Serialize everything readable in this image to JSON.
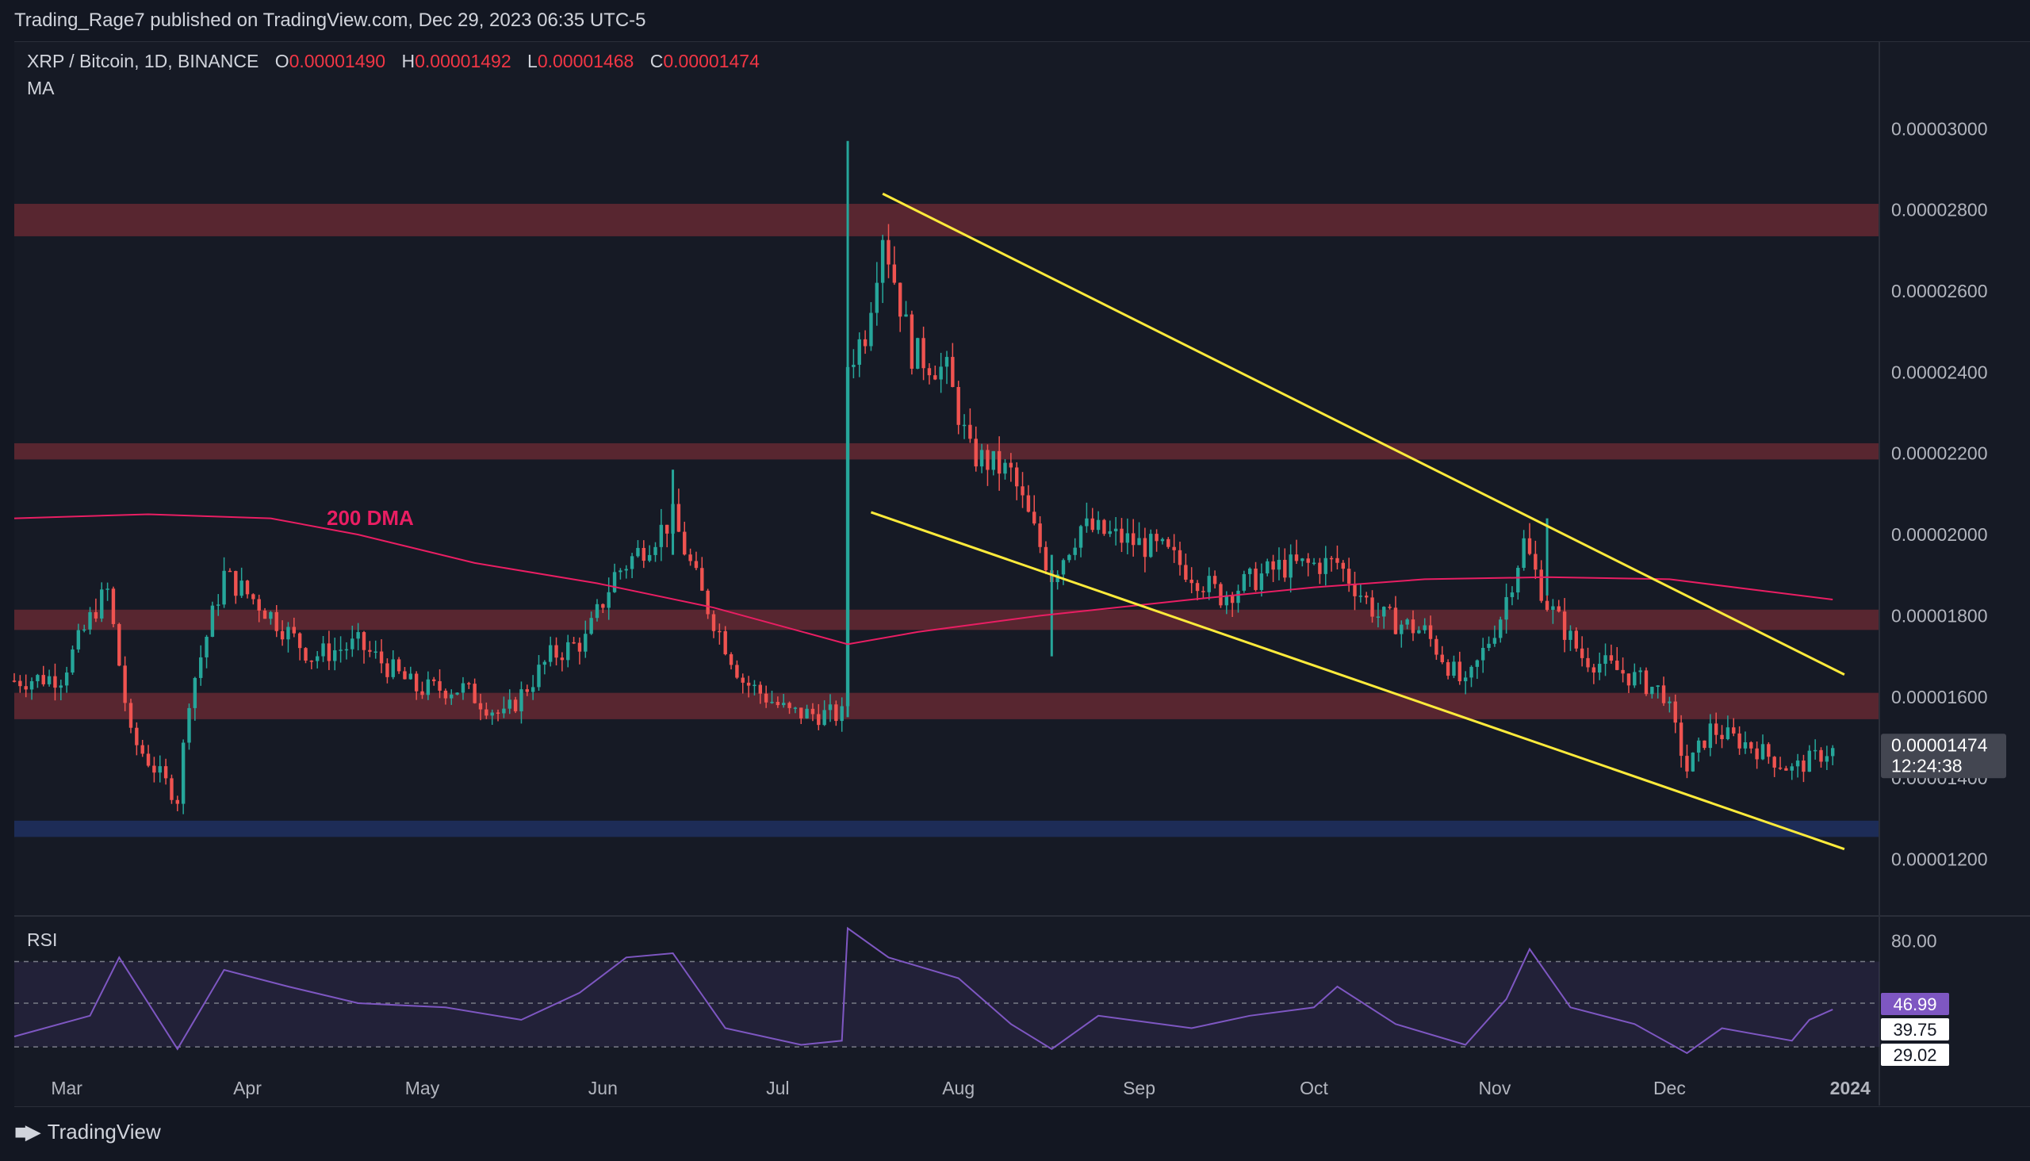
{
  "publisher_line": "Trading_Rage7 published on TradingView.com, Dec 29, 2023 06:35 UTC-5",
  "legend": {
    "symbol": "XRP / Bitcoin, 1D, BINANCE",
    "o_label": "O",
    "o_value": "0.00001490",
    "h_label": "H",
    "h_value": "0.00001492",
    "l_label": "L",
    "l_value": "0.00001468",
    "c_label": "C",
    "c_value": "0.00001474"
  },
  "ma_label": "MA",
  "rsi_label": "RSI",
  "footer_brand": "TradingView",
  "colors": {
    "up": "#26a69a",
    "down": "#ef5350",
    "ma": "#e91e63",
    "trendline": "#ffeb3b",
    "zone_red": "#5c2730",
    "zone_blue": "#1e2d5a",
    "rsi": "#7e57c2",
    "price_tag": "#434651"
  },
  "chart_data": [
    {
      "type": "candlestick",
      "annotation_text": "200 DMA",
      "x_ticks": [
        "Mar",
        "Apr",
        "May",
        "Jun",
        "Jul",
        "Aug",
        "Sep",
        "Oct",
        "Nov",
        "Dec",
        "2024"
      ],
      "y_ticks": [
        "0.00003000",
        "0.00002800",
        "0.00002600",
        "0.00002400",
        "0.00002200",
        "0.00002000",
        "0.00001800",
        "0.00001600",
        "0.00001400",
        "0.00001200"
      ],
      "ylim": [
        1.07e-05,
        3.2e-05
      ],
      "current_price": "0.00001474",
      "countdown": "12:24:38",
      "zones": [
        {
          "color": "red",
          "from": 2.735e-05,
          "to": 2.815e-05
        },
        {
          "color": "red",
          "from": 2.185e-05,
          "to": 2.225e-05
        },
        {
          "color": "red",
          "from": 1.765e-05,
          "to": 1.815e-05
        },
        {
          "color": "red",
          "from": 1.545e-05,
          "to": 1.61e-05
        },
        {
          "color": "blue",
          "from": 1.255e-05,
          "to": 1.295e-05
        }
      ],
      "trendlines": [
        {
          "from": [
            "2023-07-19",
            2.84e-05
          ],
          "to": [
            "2023-12-31",
            1.655e-05
          ]
        },
        {
          "from": [
            "2023-07-17",
            2.055e-05
          ],
          "to": [
            "2023-12-31",
            1.225e-05
          ]
        }
      ],
      "ma_points": [
        [
          "2023-02-20",
          2.04e-05
        ],
        [
          "2023-03-15",
          2.05e-05
        ],
        [
          "2023-04-05",
          2.04e-05
        ],
        [
          "2023-04-20",
          2e-05
        ],
        [
          "2023-05-10",
          1.93e-05
        ],
        [
          "2023-05-31",
          1.88e-05
        ],
        [
          "2023-06-20",
          1.82e-05
        ],
        [
          "2023-07-13",
          1.73e-05
        ],
        [
          "2023-07-25",
          1.76e-05
        ],
        [
          "2023-08-15",
          1.8e-05
        ],
        [
          "2023-09-10",
          1.84e-05
        ],
        [
          "2023-10-01",
          1.87e-05
        ],
        [
          "2023-10-20",
          1.89e-05
        ],
        [
          "2023-11-10",
          1.895e-05
        ],
        [
          "2023-12-01",
          1.89e-05
        ],
        [
          "2023-12-29",
          1.84e-05
        ]
      ],
      "ohlc_anchors": [
        [
          "2023-02-20",
          1.64e-05
        ],
        [
          "2023-02-28",
          1.65e-05
        ],
        [
          "2023-03-06",
          1.82e-05
        ],
        [
          "2023-03-08",
          1.86e-05
        ],
        [
          "2023-03-12",
          1.5e-05
        ],
        [
          "2023-03-20",
          1.35e-05
        ],
        [
          "2023-03-22",
          1.6e-05
        ],
        [
          "2023-03-28",
          1.9e-05
        ],
        [
          "2023-04-03",
          1.83e-05
        ],
        [
          "2023-04-12",
          1.7e-05
        ],
        [
          "2023-04-20",
          1.73e-05
        ],
        [
          "2023-04-30",
          1.62e-05
        ],
        [
          "2023-05-08",
          1.62e-05
        ],
        [
          "2023-05-15",
          1.55e-05
        ],
        [
          "2023-05-23",
          1.7e-05
        ],
        [
          "2023-05-29",
          1.74e-05
        ],
        [
          "2023-06-03",
          1.9e-05
        ],
        [
          "2023-06-13",
          2.04e-05
        ],
        [
          "2023-06-18",
          1.85e-05
        ],
        [
          "2023-06-25",
          1.64e-05
        ],
        [
          "2023-07-03",
          1.56e-05
        ],
        [
          "2023-07-12",
          1.555e-05
        ],
        [
          "2023-07-13",
          2.42e-05
        ],
        [
          "2023-07-16",
          2.5e-05
        ],
        [
          "2023-07-19",
          2.75e-05
        ],
        [
          "2023-07-24",
          2.45e-05
        ],
        [
          "2023-07-30",
          2.4e-05
        ],
        [
          "2023-08-03",
          2.2e-05
        ],
        [
          "2023-08-10",
          2.15e-05
        ],
        [
          "2023-08-17",
          1.9e-05
        ],
        [
          "2023-08-22",
          2.02e-05
        ],
        [
          "2023-09-05",
          1.96e-05
        ],
        [
          "2023-09-15",
          1.85e-05
        ],
        [
          "2023-09-25",
          1.92e-05
        ],
        [
          "2023-10-05",
          1.93e-05
        ],
        [
          "2023-10-12",
          1.8e-05
        ],
        [
          "2023-10-20",
          1.76e-05
        ],
        [
          "2023-10-27",
          1.62e-05
        ],
        [
          "2023-11-02",
          1.8e-05
        ],
        [
          "2023-11-06",
          1.98e-05
        ],
        [
          "2023-11-10",
          1.83e-05
        ],
        [
          "2023-11-16",
          1.7e-05
        ],
        [
          "2023-11-23",
          1.66e-05
        ],
        [
          "2023-11-30",
          1.61e-05
        ],
        [
          "2023-12-04",
          1.42e-05
        ],
        [
          "2023-12-08",
          1.52e-05
        ],
        [
          "2023-12-15",
          1.48e-05
        ],
        [
          "2023-12-22",
          1.42e-05
        ],
        [
          "2023-12-29",
          1.474e-05
        ]
      ]
    },
    {
      "type": "line",
      "name": "RSI",
      "y_ticks": [
        "80.00"
      ],
      "ylim": [
        10,
        90
      ],
      "levels": [
        "46.99",
        "39.75",
        "29.02"
      ],
      "band": [
        29.02,
        70
      ],
      "points": [
        [
          "2023-02-20",
          34
        ],
        [
          "2023-03-05",
          44
        ],
        [
          "2023-03-10",
          72
        ],
        [
          "2023-03-20",
          28
        ],
        [
          "2023-03-28",
          66
        ],
        [
          "2023-04-08",
          58
        ],
        [
          "2023-04-20",
          50
        ],
        [
          "2023-05-05",
          48
        ],
        [
          "2023-05-18",
          42
        ],
        [
          "2023-05-28",
          55
        ],
        [
          "2023-06-05",
          72
        ],
        [
          "2023-06-13",
          74
        ],
        [
          "2023-06-22",
          38
        ],
        [
          "2023-07-05",
          30
        ],
        [
          "2023-07-12",
          32
        ],
        [
          "2023-07-13",
          86
        ],
        [
          "2023-07-20",
          72
        ],
        [
          "2023-08-01",
          62
        ],
        [
          "2023-08-10",
          40
        ],
        [
          "2023-08-17",
          28
        ],
        [
          "2023-08-25",
          44
        ],
        [
          "2023-09-10",
          38
        ],
        [
          "2023-09-20",
          44
        ],
        [
          "2023-10-01",
          48
        ],
        [
          "2023-10-05",
          58
        ],
        [
          "2023-10-15",
          40
        ],
        [
          "2023-10-27",
          30
        ],
        [
          "2023-11-03",
          52
        ],
        [
          "2023-11-07",
          76
        ],
        [
          "2023-11-14",
          48
        ],
        [
          "2023-11-25",
          40
        ],
        [
          "2023-12-04",
          26
        ],
        [
          "2023-12-10",
          38
        ],
        [
          "2023-12-22",
          32
        ],
        [
          "2023-12-25",
          42
        ],
        [
          "2023-12-29",
          46.99
        ]
      ]
    }
  ]
}
